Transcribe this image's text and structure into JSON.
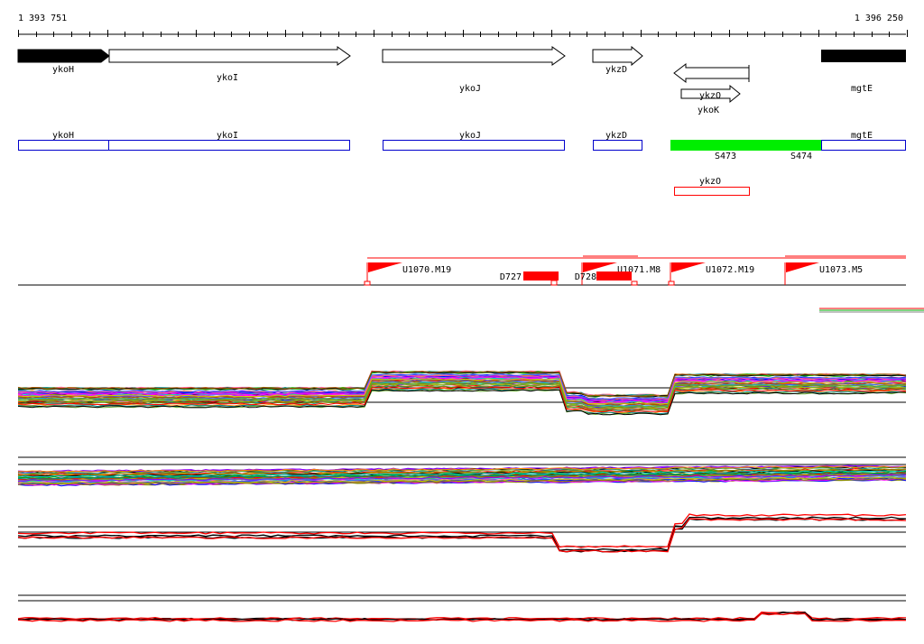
{
  "coords": {
    "start": "1 393 751",
    "end": "1 396 250"
  },
  "genes": [
    {
      "name": "ykoH",
      "direction": "forward",
      "style": "filled"
    },
    {
      "name": "ykoI",
      "direction": "forward",
      "style": "outline"
    },
    {
      "name": "ykoJ",
      "direction": "forward",
      "style": "outline"
    },
    {
      "name": "ykzD",
      "direction": "forward",
      "style": "outline"
    },
    {
      "name": "ykoK",
      "direction": "reverse",
      "style": "outline"
    },
    {
      "name": "ykzO",
      "direction": "forward",
      "style": "outline"
    },
    {
      "name": "mgtE",
      "direction": "forward",
      "style": "filled"
    }
  ],
  "annotations": [
    {
      "name": "ykoH"
    },
    {
      "name": "ykoI"
    },
    {
      "name": "ykoJ"
    },
    {
      "name": "ykzD"
    },
    {
      "name": "mgtE"
    }
  ],
  "regions": [
    {
      "name": "S473"
    },
    {
      "name": "S474"
    }
  ],
  "small_rna": {
    "name": "ykzO"
  },
  "transcripts": [
    {
      "name": "U1070.M19"
    },
    {
      "name": "U1071.M8"
    },
    {
      "name": "U1072.M19"
    },
    {
      "name": "U1073.M5"
    }
  ],
  "downregulated": [
    {
      "name": "D727"
    },
    {
      "name": "D728"
    }
  ],
  "colors": {
    "gene_fill": "#000000",
    "annotation_box": "#0000cc",
    "region_fill": "#00ee00",
    "transcript": "#ff0000",
    "down_fill": "#ff0000"
  }
}
